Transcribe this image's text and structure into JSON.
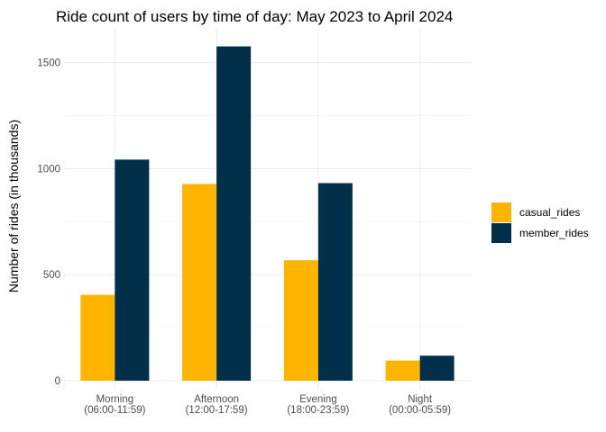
{
  "chart_data": {
    "type": "bar",
    "title": "Ride count of users by time of day: May 2023 to April 2024",
    "xlabel": "",
    "ylabel": "Number of rides (in thousands)",
    "categories": [
      [
        "Morning",
        "(06:00-11:59)"
      ],
      [
        "Afternoon",
        "(12:00-17:59)"
      ],
      [
        "Evening",
        "(18:00-23:59)"
      ],
      [
        "Night",
        "(00:00-05:59)"
      ]
    ],
    "series": [
      {
        "name": "casual_rides",
        "color": "#FFB400",
        "values": [
          405,
          928,
          568,
          95
        ]
      },
      {
        "name": "member_rides",
        "color": "#003049",
        "values": [
          1043,
          1577,
          932,
          118
        ]
      }
    ],
    "ylim": [
      0,
      1660
    ],
    "yticks": [
      0,
      500,
      1000,
      1500
    ],
    "grid": true,
    "legend": "right"
  }
}
